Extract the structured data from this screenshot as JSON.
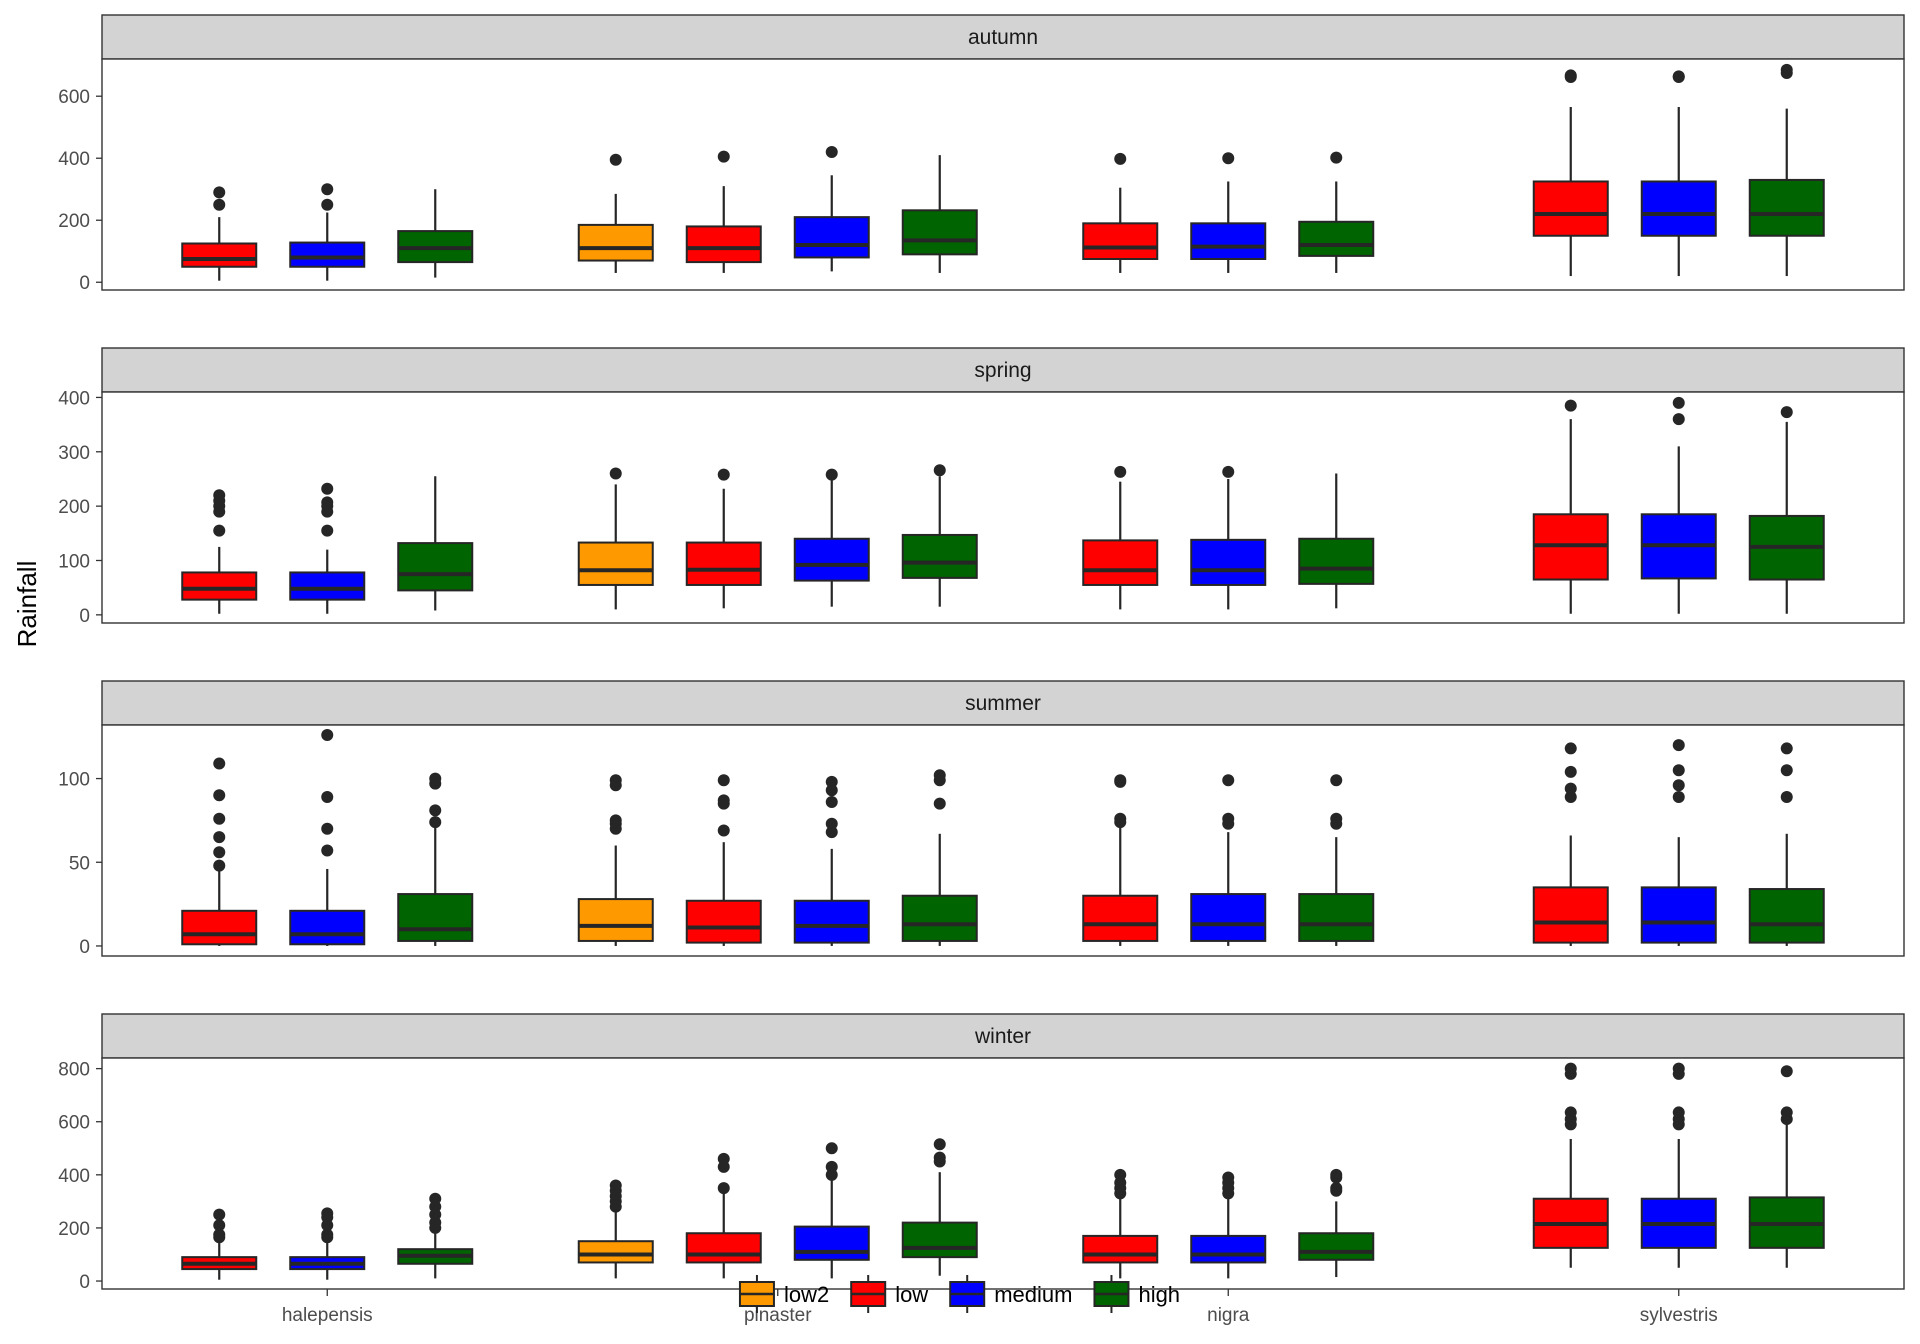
{
  "chart_data": {
    "type": "boxplot",
    "ylabel": "Rainfall",
    "xlabel": "",
    "categories": [
      "halepensis",
      "pinaster",
      "nigra",
      "sylvestris"
    ],
    "groups": [
      "low2",
      "low",
      "medium",
      "high"
    ],
    "colors": {
      "low2": "#ff9900",
      "low": "#ff0000",
      "medium": "#0000ff",
      "high": "#006400"
    },
    "legend": {
      "position": "bottom",
      "entries": [
        "low2",
        "low",
        "medium",
        "high"
      ]
    },
    "grid": false,
    "panels": [
      {
        "name": "autumn",
        "ylim": [
          -25,
          720
        ],
        "yticks": [
          0,
          200,
          400,
          600
        ],
        "boxes": [
          {
            "category": "halepensis",
            "group": "low",
            "color": "#ff0000",
            "min": 5,
            "q1": 50,
            "median": 75,
            "q3": 125,
            "max": 210,
            "outliers": [
              250,
              290
            ]
          },
          {
            "category": "halepensis",
            "group": "medium",
            "color": "#0000ff",
            "min": 5,
            "q1": 50,
            "median": 80,
            "q3": 128,
            "max": 225,
            "outliers": [
              250,
              300
            ]
          },
          {
            "category": "halepensis",
            "group": "high",
            "color": "#006400",
            "min": 15,
            "q1": 65,
            "median": 110,
            "q3": 165,
            "max": 300,
            "outliers": []
          },
          {
            "category": "pinaster",
            "group": "low2",
            "color": "#ff9900",
            "min": 30,
            "q1": 70,
            "median": 110,
            "q3": 185,
            "max": 285,
            "outliers": [
              395
            ]
          },
          {
            "category": "pinaster",
            "group": "low",
            "color": "#ff0000",
            "min": 30,
            "q1": 65,
            "median": 110,
            "q3": 180,
            "max": 310,
            "outliers": [
              405
            ]
          },
          {
            "category": "pinaster",
            "group": "medium",
            "color": "#0000ff",
            "min": 35,
            "q1": 80,
            "median": 120,
            "q3": 210,
            "max": 345,
            "outliers": [
              420
            ]
          },
          {
            "category": "pinaster",
            "group": "high",
            "color": "#006400",
            "min": 30,
            "q1": 90,
            "median": 135,
            "q3": 232,
            "max": 410,
            "outliers": []
          },
          {
            "category": "nigra",
            "group": "low",
            "color": "#ff0000",
            "min": 30,
            "q1": 75,
            "median": 112,
            "q3": 190,
            "max": 305,
            "outliers": [
              398
            ]
          },
          {
            "category": "nigra",
            "group": "medium",
            "color": "#0000ff",
            "min": 30,
            "q1": 75,
            "median": 115,
            "q3": 190,
            "max": 325,
            "outliers": [
              400
            ]
          },
          {
            "category": "nigra",
            "group": "high",
            "color": "#006400",
            "min": 30,
            "q1": 85,
            "median": 120,
            "q3": 195,
            "max": 325,
            "outliers": [
              402
            ]
          },
          {
            "category": "sylvestris",
            "group": "low",
            "color": "#ff0000",
            "min": 20,
            "q1": 150,
            "median": 220,
            "q3": 325,
            "max": 565,
            "outliers": [
              662,
              667
            ]
          },
          {
            "category": "sylvestris",
            "group": "medium",
            "color": "#0000ff",
            "min": 20,
            "q1": 150,
            "median": 220,
            "q3": 325,
            "max": 565,
            "outliers": [
              662,
              664
            ]
          },
          {
            "category": "sylvestris",
            "group": "high",
            "color": "#006400",
            "min": 20,
            "q1": 150,
            "median": 220,
            "q3": 330,
            "max": 560,
            "outliers": [
              675,
              685
            ]
          }
        ]
      },
      {
        "name": "spring",
        "ylim": [
          -15,
          410
        ],
        "yticks": [
          0,
          100,
          200,
          300,
          400
        ],
        "boxes": [
          {
            "category": "halepensis",
            "group": "low",
            "color": "#ff0000",
            "min": 2,
            "q1": 28,
            "median": 48,
            "q3": 78,
            "max": 125,
            "outliers": [
              155,
              190,
              200,
              210,
              220
            ]
          },
          {
            "category": "halepensis",
            "group": "medium",
            "color": "#0000ff",
            "min": 2,
            "q1": 28,
            "median": 48,
            "q3": 78,
            "max": 120,
            "outliers": [
              155,
              190,
              200,
              207,
              232
            ]
          },
          {
            "category": "halepensis",
            "group": "high",
            "color": "#006400",
            "min": 8,
            "q1": 45,
            "median": 75,
            "q3": 132,
            "max": 255,
            "outliers": []
          },
          {
            "category": "pinaster",
            "group": "low2",
            "color": "#ff9900",
            "min": 10,
            "q1": 55,
            "median": 82,
            "q3": 133,
            "max": 240,
            "outliers": [
              260
            ]
          },
          {
            "category": "pinaster",
            "group": "low",
            "color": "#ff0000",
            "min": 12,
            "q1": 55,
            "median": 83,
            "q3": 133,
            "max": 232,
            "outliers": [
              258
            ]
          },
          {
            "category": "pinaster",
            "group": "medium",
            "color": "#0000ff",
            "min": 15,
            "q1": 63,
            "median": 92,
            "q3": 140,
            "max": 255,
            "outliers": [
              258
            ]
          },
          {
            "category": "pinaster",
            "group": "high",
            "color": "#006400",
            "min": 15,
            "q1": 68,
            "median": 96,
            "q3": 147,
            "max": 255,
            "outliers": [
              266
            ]
          },
          {
            "category": "nigra",
            "group": "low",
            "color": "#ff0000",
            "min": 10,
            "q1": 55,
            "median": 82,
            "q3": 137,
            "max": 245,
            "outliers": [
              263
            ]
          },
          {
            "category": "nigra",
            "group": "medium",
            "color": "#0000ff",
            "min": 10,
            "q1": 55,
            "median": 82,
            "q3": 138,
            "max": 250,
            "outliers": [
              263
            ]
          },
          {
            "category": "nigra",
            "group": "high",
            "color": "#006400",
            "min": 12,
            "q1": 57,
            "median": 85,
            "q3": 140,
            "max": 260,
            "outliers": []
          },
          {
            "category": "sylvestris",
            "group": "low",
            "color": "#ff0000",
            "min": 2,
            "q1": 65,
            "median": 128,
            "q3": 185,
            "max": 360,
            "outliers": [
              385
            ]
          },
          {
            "category": "sylvestris",
            "group": "medium",
            "color": "#0000ff",
            "min": 2,
            "q1": 67,
            "median": 128,
            "q3": 185,
            "max": 310,
            "outliers": [
              360,
              390
            ]
          },
          {
            "category": "sylvestris",
            "group": "high",
            "color": "#006400",
            "min": 2,
            "q1": 65,
            "median": 125,
            "q3": 182,
            "max": 355,
            "outliers": [
              373
            ]
          }
        ]
      },
      {
        "name": "summer",
        "ylim": [
          -6,
          132
        ],
        "yticks": [
          0,
          50,
          100
        ],
        "boxes": [
          {
            "category": "halepensis",
            "group": "low",
            "color": "#ff0000",
            "min": 0,
            "q1": 1,
            "median": 7,
            "q3": 21,
            "max": 45,
            "outliers": [
              48,
              56,
              65,
              76,
              90,
              109
            ]
          },
          {
            "category": "halepensis",
            "group": "medium",
            "color": "#0000ff",
            "min": 0,
            "q1": 1,
            "median": 7,
            "q3": 21,
            "max": 46,
            "outliers": [
              57,
              70,
              89,
              126
            ]
          },
          {
            "category": "halepensis",
            "group": "high",
            "color": "#006400",
            "min": 0,
            "q1": 3,
            "median": 10,
            "q3": 31,
            "max": 72,
            "outliers": [
              74,
              81,
              97,
              100
            ]
          },
          {
            "category": "pinaster",
            "group": "low2",
            "color": "#ff9900",
            "min": 0,
            "q1": 3,
            "median": 12,
            "q3": 28,
            "max": 60,
            "outliers": [
              70,
              73,
              75,
              96,
              99
            ]
          },
          {
            "category": "pinaster",
            "group": "low",
            "color": "#ff0000",
            "min": 0,
            "q1": 2,
            "median": 11,
            "q3": 27,
            "max": 62,
            "outliers": [
              69,
              85,
              87,
              99
            ]
          },
          {
            "category": "pinaster",
            "group": "medium",
            "color": "#0000ff",
            "min": 0,
            "q1": 2,
            "median": 12,
            "q3": 27,
            "max": 58,
            "outliers": [
              68,
              73,
              86,
              93,
              98
            ]
          },
          {
            "category": "pinaster",
            "group": "high",
            "color": "#006400",
            "min": 0,
            "q1": 3,
            "median": 13,
            "q3": 30,
            "max": 67,
            "outliers": [
              85,
              99,
              102
            ]
          },
          {
            "category": "nigra",
            "group": "low",
            "color": "#ff0000",
            "min": 0,
            "q1": 3,
            "median": 13,
            "q3": 30,
            "max": 72,
            "outliers": [
              74,
              76,
              98,
              99
            ]
          },
          {
            "category": "nigra",
            "group": "medium",
            "color": "#0000ff",
            "min": 0,
            "q1": 3,
            "median": 13,
            "q3": 31,
            "max": 68,
            "outliers": [
              73,
              76,
              99
            ]
          },
          {
            "category": "nigra",
            "group": "high",
            "color": "#006400",
            "min": 0,
            "q1": 3,
            "median": 13,
            "q3": 31,
            "max": 65,
            "outliers": [
              73,
              76,
              99
            ]
          },
          {
            "category": "sylvestris",
            "group": "low",
            "color": "#ff0000",
            "min": 0,
            "q1": 2,
            "median": 14,
            "q3": 35,
            "max": 66,
            "outliers": [
              89,
              94,
              104,
              118
            ]
          },
          {
            "category": "sylvestris",
            "group": "medium",
            "color": "#0000ff",
            "min": 0,
            "q1": 2,
            "median": 14,
            "q3": 35,
            "max": 65,
            "outliers": [
              89,
              96,
              105,
              120
            ]
          },
          {
            "category": "sylvestris",
            "group": "high",
            "color": "#006400",
            "min": 0,
            "q1": 2,
            "median": 13,
            "q3": 34,
            "max": 67,
            "outliers": [
              89,
              105,
              118
            ]
          }
        ]
      },
      {
        "name": "winter",
        "ylim": [
          -30,
          840
        ],
        "yticks": [
          0,
          200,
          400,
          600,
          800
        ],
        "boxes": [
          {
            "category": "halepensis",
            "group": "low",
            "color": "#ff0000",
            "min": 5,
            "q1": 45,
            "median": 65,
            "q3": 90,
            "max": 150,
            "outliers": [
              165,
              175,
              210,
              250
            ]
          },
          {
            "category": "halepensis",
            "group": "medium",
            "color": "#0000ff",
            "min": 5,
            "q1": 45,
            "median": 65,
            "q3": 90,
            "max": 150,
            "outliers": [
              165,
              175,
              210,
              240,
              255
            ]
          },
          {
            "category": "halepensis",
            "group": "high",
            "color": "#006400",
            "min": 10,
            "q1": 65,
            "median": 95,
            "q3": 120,
            "max": 185,
            "outliers": [
              200,
              220,
              250,
              280,
              310
            ]
          },
          {
            "category": "pinaster",
            "group": "low2",
            "color": "#ff9900",
            "min": 10,
            "q1": 70,
            "median": 100,
            "q3": 150,
            "max": 265,
            "outliers": [
              280,
              300,
              320,
              340,
              360
            ]
          },
          {
            "category": "pinaster",
            "group": "low",
            "color": "#ff0000",
            "min": 10,
            "q1": 70,
            "median": 100,
            "q3": 180,
            "max": 340,
            "outliers": [
              350,
              430,
              460
            ]
          },
          {
            "category": "pinaster",
            "group": "medium",
            "color": "#0000ff",
            "min": 10,
            "q1": 80,
            "median": 110,
            "q3": 205,
            "max": 380,
            "outliers": [
              400,
              430,
              500
            ]
          },
          {
            "category": "pinaster",
            "group": "high",
            "color": "#006400",
            "min": 20,
            "q1": 90,
            "median": 125,
            "q3": 220,
            "max": 410,
            "outliers": [
              450,
              465,
              515
            ]
          },
          {
            "category": "nigra",
            "group": "low",
            "color": "#ff0000",
            "min": 10,
            "q1": 70,
            "median": 100,
            "q3": 170,
            "max": 310,
            "outliers": [
              330,
              350,
              370,
              400
            ]
          },
          {
            "category": "nigra",
            "group": "medium",
            "color": "#0000ff",
            "min": 10,
            "q1": 70,
            "median": 100,
            "q3": 170,
            "max": 310,
            "outliers": [
              330,
              350,
              370,
              390
            ]
          },
          {
            "category": "nigra",
            "group": "high",
            "color": "#006400",
            "min": 15,
            "q1": 80,
            "median": 110,
            "q3": 180,
            "max": 300,
            "outliers": [
              340,
              350,
              390,
              400
            ]
          },
          {
            "category": "sylvestris",
            "group": "low",
            "color": "#ff0000",
            "min": 50,
            "q1": 125,
            "median": 215,
            "q3": 310,
            "max": 535,
            "outliers": [
              590,
              610,
              635,
              780,
              800
            ]
          },
          {
            "category": "sylvestris",
            "group": "medium",
            "color": "#0000ff",
            "min": 50,
            "q1": 125,
            "median": 215,
            "q3": 310,
            "max": 535,
            "outliers": [
              590,
              610,
              635,
              780,
              800
            ]
          },
          {
            "category": "sylvestris",
            "group": "high",
            "color": "#006400",
            "min": 50,
            "q1": 125,
            "median": 215,
            "q3": 315,
            "max": 590,
            "outliers": [
              610,
              635,
              790
            ]
          }
        ]
      }
    ]
  }
}
